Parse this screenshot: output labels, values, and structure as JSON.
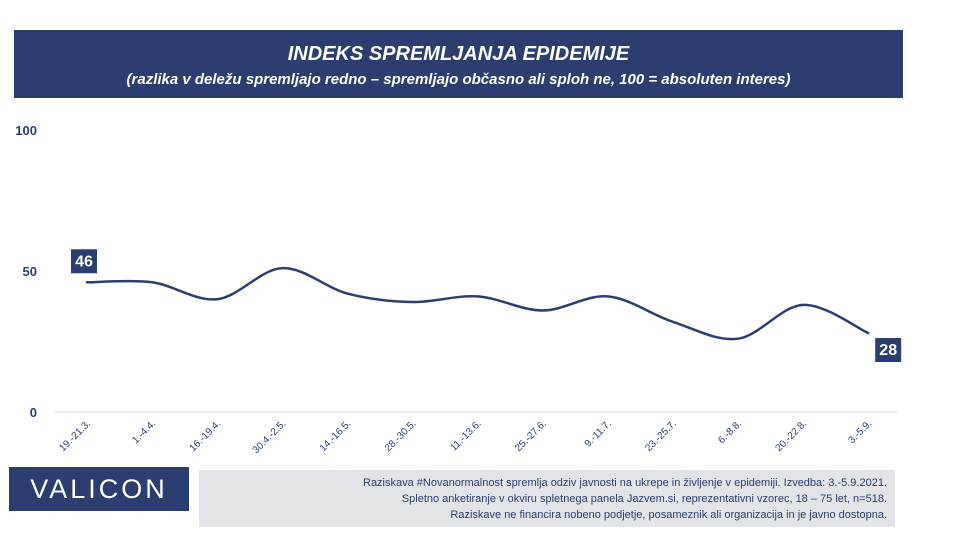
{
  "header": {
    "title": "INDEKS SPREMLJANJA EPIDEMIJE",
    "subtitle": "(razlika v deležu spremljajo redno – spremljajo občasno ali sploh ne, 100 = absoluten interes)"
  },
  "chart_data": {
    "type": "line",
    "title": "INDEKS SPREMLJANJA EPIDEMIJE",
    "subtitle": "(razlika v deležu spremljajo redno – spremljajo občasno ali sploh ne, 100 = absoluten interes)",
    "categories": [
      "19.-21.3.",
      "1.-4.4.",
      "16.-19.4.",
      "30.4.-2.5.",
      "14.-16.5.",
      "28.-30.5.",
      "11.-13.6.",
      "25.-27.6.",
      "9.-11.7.",
      "23.-25.7.",
      "6.-8.8.",
      "20.-22.8.",
      "3.-5.9."
    ],
    "series": [
      {
        "values": [
          46,
          46,
          40,
          51,
          42,
          39,
          41,
          36,
          41,
          32,
          26,
          38,
          28
        ]
      }
    ],
    "labels": [
      "46",
      "28"
    ],
    "yticks": [
      "0",
      "50",
      "100"
    ],
    "ylim": [
      0,
      100
    ],
    "xlabel": "",
    "ylabel": "",
    "grid": false,
    "line_color": "#2b3e6f"
  },
  "branding": {
    "logo_text": "VALICON"
  },
  "footnote": {
    "lines": [
      "Raziskava #Novanormalnost spremlja odziv javnosti na ukrepe in življenje v epidemiji. Izvedba: 3.-5.9.2021.",
      "Spletno anketiranje v okviru spletnega panela Jazvem.si, reprezentativni vzorec, 18 – 75 let, n=518.",
      "Raziskave ne financira nobeno podjetje, posameznik ali organizacija in je javno dostopna."
    ]
  },
  "colors": {
    "brand": "#2b3e6f",
    "footnote_bg": "#e3e4e8"
  }
}
